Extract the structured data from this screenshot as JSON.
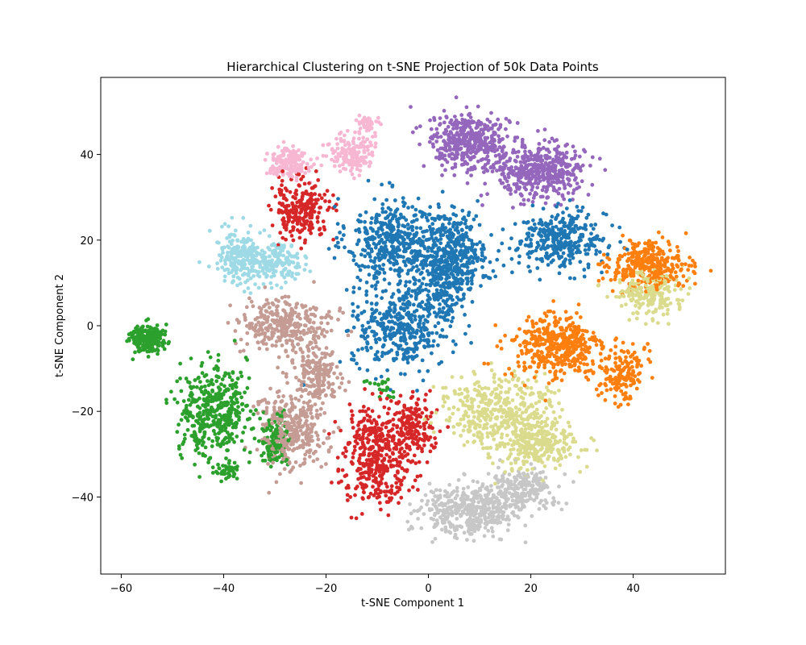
{
  "chart_data": {
    "type": "scatter",
    "title": "Hierarchical Clustering on t-SNE Projection of 50k Data Points",
    "xlabel": "t-SNE Component 1",
    "ylabel": "t-SNE Component 2",
    "xlim": [
      -64,
      58
    ],
    "ylim": [
      -58,
      58
    ],
    "xticks": [
      -60,
      -40,
      -20,
      0,
      20,
      40
    ],
    "yticks": [
      -40,
      -20,
      0,
      20,
      40
    ],
    "grid": false,
    "legend": "none",
    "series": [
      {
        "color": "#1f77b4",
        "blobs": [
          [
            -7,
            20,
            8,
            9,
            1
          ],
          [
            5,
            18,
            6,
            8,
            0.8
          ],
          [
            26,
            20,
            8,
            6,
            0.8
          ],
          [
            -5,
            0,
            9,
            9,
            1
          ],
          [
            3,
            10,
            6,
            7,
            0.5
          ]
        ]
      },
      {
        "color": "#ff7f0e",
        "blobs": [
          [
            25,
            -5,
            8,
            7,
            1
          ],
          [
            43,
            14,
            7,
            5,
            0.8
          ],
          [
            38,
            -11,
            4,
            6,
            0.4
          ]
        ]
      },
      {
        "color": "#2ca02c",
        "blobs": [
          [
            -55,
            -3,
            3,
            3,
            0.5
          ],
          [
            -42,
            -20,
            6,
            10,
            1
          ],
          [
            -30,
            -27,
            3,
            5,
            0.3
          ],
          [
            -39,
            -34,
            2,
            2,
            0.1
          ],
          [
            -9,
            -14,
            3,
            2,
            0.05
          ]
        ]
      },
      {
        "color": "#d62728",
        "blobs": [
          [
            -10,
            -30,
            6,
            10,
            1
          ],
          [
            -25,
            27,
            5,
            6,
            0.6
          ],
          [
            -3,
            -24,
            4,
            6,
            0.4
          ]
        ]
      },
      {
        "color": "#9467bd",
        "blobs": [
          [
            8,
            43,
            7,
            6,
            1
          ],
          [
            22,
            36,
            8,
            6,
            1
          ]
        ]
      },
      {
        "color": "#c49c94",
        "blobs": [
          [
            -28,
            0,
            8,
            6,
            0.8
          ],
          [
            -27,
            -25,
            6,
            8,
            0.8
          ],
          [
            -22,
            -12,
            4,
            6,
            0.4
          ]
        ]
      },
      {
        "color": "#f7b6d2",
        "blobs": [
          [
            -27,
            38,
            4,
            3,
            0.4
          ],
          [
            -15,
            40,
            4,
            4,
            0.4
          ],
          [
            -12,
            47,
            2,
            2,
            0.1
          ]
        ]
      },
      {
        "color": "#c7c7c7",
        "blobs": [
          [
            8,
            -43,
            9,
            5,
            1
          ],
          [
            18,
            -38,
            6,
            4,
            0.5
          ]
        ]
      },
      {
        "color": "#dbdb8d",
        "blobs": [
          [
            14,
            -20,
            10,
            7,
            1
          ],
          [
            21,
            -28,
            8,
            5,
            0.6
          ],
          [
            43,
            7,
            6,
            5,
            0.5
          ]
        ]
      },
      {
        "color": "#9edae5",
        "blobs": [
          [
            -37,
            16,
            4,
            6,
            0.5
          ],
          [
            -30,
            15,
            5,
            4,
            0.4
          ]
        ]
      }
    ]
  }
}
